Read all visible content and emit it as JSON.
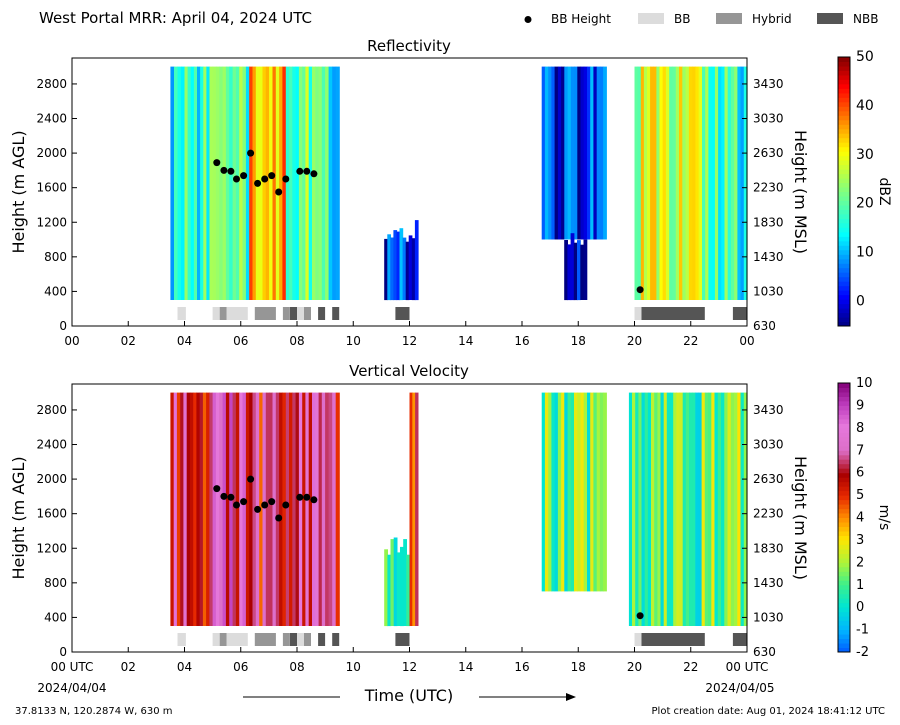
{
  "header": {
    "title": "West Portal MRR:  April 04, 2024 UTC",
    "legend": [
      {
        "label": "BB Height",
        "kind": "dot",
        "color": "#000000"
      },
      {
        "label": "BB",
        "kind": "box",
        "color": "#dcdcdc"
      },
      {
        "label": "Hybrid",
        "kind": "box",
        "color": "#969696"
      },
      {
        "label": "NBB",
        "kind": "box",
        "color": "#555555"
      }
    ]
  },
  "footer": {
    "location": "37.8133 N, 120.2874 W, 630 m",
    "creation": "Plot creation date: Aug 01, 2024 18:41:12 UTC",
    "start_date": "2024/04/04",
    "end_date": "2024/04/05",
    "xlabel": "Time (UTC)"
  },
  "chart_data": [
    {
      "type": "heatmap",
      "title": "Reflectivity",
      "xlabel": "",
      "ylabel": "Height (m AGL)",
      "ylabel_right": "Height (m MSL)",
      "xlim": [
        0,
        24
      ],
      "ylim": [
        0,
        3100
      ],
      "x_ticks": [
        "00",
        "02",
        "04",
        "06",
        "08",
        "10",
        "12",
        "14",
        "16",
        "18",
        "20",
        "22",
        "00"
      ],
      "y_ticks": [
        0,
        400,
        800,
        1200,
        1600,
        2000,
        2400,
        2800
      ],
      "y_ticks_right": [
        "630",
        "1030",
        "1430",
        "1830",
        "2230",
        "2630",
        "3030",
        "3430"
      ],
      "colorbar": {
        "label": "dBZ",
        "min": -5,
        "max": 50,
        "ticks": [
          0,
          10,
          20,
          30,
          40,
          50
        ],
        "colormap": "jet"
      },
      "bb_height_points": [
        {
          "x": 5.15,
          "y": 1890
        },
        {
          "x": 5.4,
          "y": 1800
        },
        {
          "x": 5.65,
          "y": 1790
        },
        {
          "x": 5.85,
          "y": 1700
        },
        {
          "x": 6.1,
          "y": 1740
        },
        {
          "x": 6.35,
          "y": 2000
        },
        {
          "x": 6.6,
          "y": 1650
        },
        {
          "x": 6.85,
          "y": 1700
        },
        {
          "x": 7.1,
          "y": 1740
        },
        {
          "x": 7.35,
          "y": 1550
        },
        {
          "x": 7.6,
          "y": 1700
        },
        {
          "x": 8.1,
          "y": 1790
        },
        {
          "x": 8.35,
          "y": 1790
        },
        {
          "x": 8.6,
          "y": 1760
        },
        {
          "x": 20.2,
          "y": 420
        }
      ],
      "bb_classification": [
        {
          "start": 3.75,
          "end": 4.05,
          "class": "BB"
        },
        {
          "start": 5.0,
          "end": 5.25,
          "class": "BB"
        },
        {
          "start": 5.25,
          "end": 5.5,
          "class": "Hybrid"
        },
        {
          "start": 5.5,
          "end": 6.25,
          "class": "BB"
        },
        {
          "start": 6.5,
          "end": 7.25,
          "class": "Hybrid"
        },
        {
          "start": 7.5,
          "end": 7.75,
          "class": "Hybrid"
        },
        {
          "start": 7.75,
          "end": 8.0,
          "class": "NBB"
        },
        {
          "start": 8.0,
          "end": 8.25,
          "class": "BB"
        },
        {
          "start": 8.25,
          "end": 8.5,
          "class": "Hybrid"
        },
        {
          "start": 8.75,
          "end": 9.0,
          "class": "NBB"
        },
        {
          "start": 9.25,
          "end": 9.5,
          "class": "NBB"
        },
        {
          "start": 11.5,
          "end": 12.0,
          "class": "NBB"
        },
        {
          "start": 20.0,
          "end": 20.25,
          "class": "BB"
        },
        {
          "start": 20.25,
          "end": 22.5,
          "class": "NBB"
        },
        {
          "start": 23.5,
          "end": 24.0,
          "class": "NBB"
        }
      ],
      "echo_regions": [
        {
          "start": 3.5,
          "end": 4.0,
          "bottom": 300,
          "top": 3000,
          "value": 14
        },
        {
          "start": 4.0,
          "end": 5.0,
          "bottom": 300,
          "top": 3000,
          "value": 18
        },
        {
          "start": 5.0,
          "end": 6.3,
          "bottom": 300,
          "top": 3000,
          "value": 19
        },
        {
          "start": 6.3,
          "end": 7.6,
          "bottom": 300,
          "top": 3000,
          "value": 34
        },
        {
          "start": 7.6,
          "end": 9.0,
          "bottom": 300,
          "top": 3000,
          "value": 20
        },
        {
          "start": 9.0,
          "end": 9.5,
          "bottom": 300,
          "top": 3000,
          "value": 16
        },
        {
          "start": 11.1,
          "end": 12.3,
          "bottom": 300,
          "top": 1100,
          "value": 2
        },
        {
          "start": 16.7,
          "end": 19.0,
          "bottom": 1000,
          "top": 3000,
          "value": 3
        },
        {
          "start": 17.5,
          "end": 18.3,
          "bottom": 300,
          "top": 1000,
          "value": 2
        },
        {
          "start": 20.0,
          "end": 21.0,
          "bottom": 300,
          "top": 3000,
          "value": 27
        },
        {
          "start": 21.0,
          "end": 22.4,
          "bottom": 300,
          "top": 3000,
          "value": 26
        },
        {
          "start": 22.4,
          "end": 24.0,
          "bottom": 300,
          "top": 3000,
          "value": 17
        }
      ]
    },
    {
      "type": "heatmap",
      "title": "Vertical Velocity",
      "xlabel": "Time (UTC)",
      "ylabel": "Height (m AGL)",
      "ylabel_right": "Height (m MSL)",
      "xlim": [
        0,
        24
      ],
      "ylim": [
        0,
        3100
      ],
      "x_ticks": [
        "00 UTC",
        "02",
        "04",
        "06",
        "08",
        "10",
        "12",
        "14",
        "16",
        "18",
        "20",
        "22",
        "00 UTC"
      ],
      "y_ticks": [
        0,
        400,
        800,
        1200,
        1600,
        2000,
        2400,
        2800
      ],
      "y_ticks_right": [
        "630",
        "1030",
        "1430",
        "1830",
        "2230",
        "2630",
        "3030",
        "3430"
      ],
      "colorbar": {
        "label": "m/s",
        "min": -2,
        "max": 10,
        "ticks": [
          -2,
          -1,
          0,
          1,
          2,
          3,
          4,
          5,
          6,
          7,
          8,
          9,
          10
        ]
      },
      "bb_height_points": [
        {
          "x": 5.15,
          "y": 1890
        },
        {
          "x": 5.4,
          "y": 1800
        },
        {
          "x": 5.65,
          "y": 1790
        },
        {
          "x": 5.85,
          "y": 1700
        },
        {
          "x": 6.1,
          "y": 1740
        },
        {
          "x": 6.35,
          "y": 2000
        },
        {
          "x": 6.6,
          "y": 1650
        },
        {
          "x": 6.85,
          "y": 1700
        },
        {
          "x": 7.1,
          "y": 1740
        },
        {
          "x": 7.35,
          "y": 1550
        },
        {
          "x": 7.6,
          "y": 1700
        },
        {
          "x": 8.1,
          "y": 1790
        },
        {
          "x": 8.35,
          "y": 1790
        },
        {
          "x": 8.6,
          "y": 1760
        },
        {
          "x": 20.2,
          "y": 420
        }
      ],
      "bb_classification": [
        {
          "start": 3.75,
          "end": 4.05,
          "class": "BB"
        },
        {
          "start": 5.0,
          "end": 5.25,
          "class": "BB"
        },
        {
          "start": 5.25,
          "end": 5.5,
          "class": "Hybrid"
        },
        {
          "start": 5.5,
          "end": 6.25,
          "class": "BB"
        },
        {
          "start": 6.5,
          "end": 7.25,
          "class": "Hybrid"
        },
        {
          "start": 7.5,
          "end": 7.75,
          "class": "Hybrid"
        },
        {
          "start": 7.75,
          "end": 8.0,
          "class": "NBB"
        },
        {
          "start": 8.0,
          "end": 8.25,
          "class": "BB"
        },
        {
          "start": 8.25,
          "end": 8.5,
          "class": "Hybrid"
        },
        {
          "start": 8.75,
          "end": 9.0,
          "class": "NBB"
        },
        {
          "start": 9.25,
          "end": 9.5,
          "class": "NBB"
        },
        {
          "start": 11.5,
          "end": 12.0,
          "class": "NBB"
        },
        {
          "start": 20.0,
          "end": 20.25,
          "class": "BB"
        },
        {
          "start": 20.25,
          "end": 22.5,
          "class": "NBB"
        },
        {
          "start": 23.5,
          "end": 24.0,
          "class": "NBB"
        }
      ],
      "echo_regions": [
        {
          "start": 3.5,
          "end": 5.0,
          "bottom": 300,
          "top": 3000,
          "value": 6.3
        },
        {
          "start": 5.0,
          "end": 6.3,
          "bottom": 300,
          "top": 3000,
          "value": 7.2
        },
        {
          "start": 6.3,
          "end": 7.6,
          "bottom": 300,
          "top": 3000,
          "value": 6.0
        },
        {
          "start": 7.6,
          "end": 9.0,
          "bottom": 300,
          "top": 3000,
          "value": 7.0
        },
        {
          "start": 9.0,
          "end": 9.5,
          "bottom": 300,
          "top": 3000,
          "value": 5.5
        },
        {
          "start": 11.1,
          "end": 12.0,
          "bottom": 300,
          "top": 1200,
          "value": 1.0
        },
        {
          "start": 12.0,
          "end": 12.3,
          "bottom": 300,
          "top": 3000,
          "value": 4.5
        },
        {
          "start": 16.7,
          "end": 19.0,
          "bottom": 700,
          "top": 3000,
          "value": 1.6
        },
        {
          "start": 19.8,
          "end": 22.5,
          "bottom": 300,
          "top": 3000,
          "value": 1.0
        },
        {
          "start": 22.5,
          "end": 24.0,
          "bottom": 300,
          "top": 3000,
          "value": 2.0
        }
      ]
    }
  ]
}
